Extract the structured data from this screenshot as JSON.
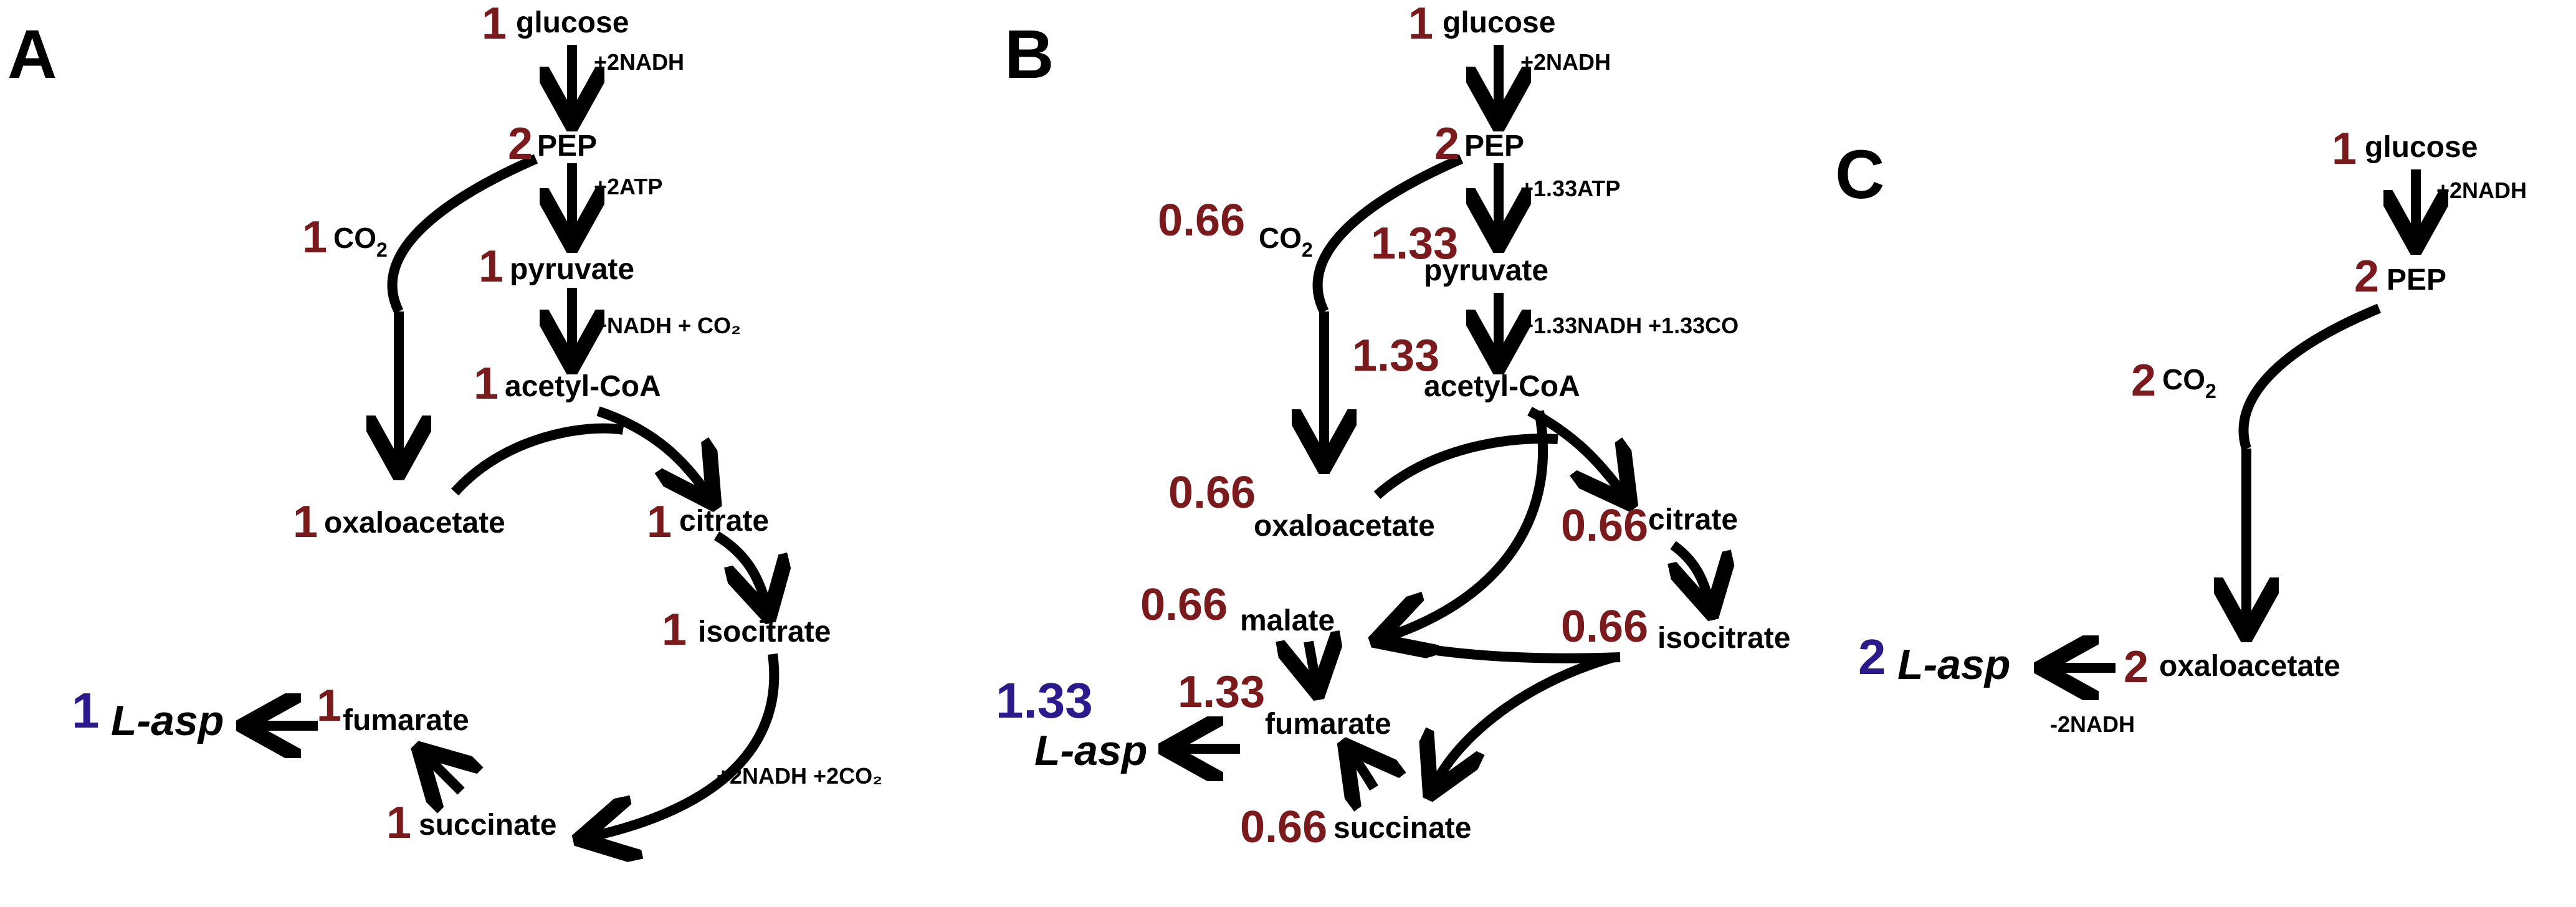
{
  "colors": {
    "coefficient": "#7a1a1c",
    "product": "#2a1a8c",
    "text": "#000000"
  },
  "panels": {
    "A": {
      "label": "A",
      "glucose": {
        "coef": "1",
        "name": "glucose"
      },
      "nadh1": "+2NADH",
      "pep": {
        "coef": "2",
        "name": "PEP"
      },
      "atp": "+2ATP",
      "co2": {
        "coef": "1",
        "name": "CO",
        "sub": "2"
      },
      "pyruvate": {
        "coef": "1",
        "name": "pyruvate"
      },
      "nadh_co2": "+NADH + CO₂",
      "acetyl": {
        "coef": "1",
        "name": "acetyl-CoA"
      },
      "oxaloacetate": {
        "coef": "1",
        "name": "oxaloacetate"
      },
      "citrate": {
        "coef": "1",
        "name": "citrate"
      },
      "isocitrate": {
        "coef": "1",
        "name": "isocitrate"
      },
      "nadh_2co2": "+2NADH +2CO₂",
      "fumarate": {
        "coef": "1",
        "name": "fumarate"
      },
      "succinate": {
        "coef": "1",
        "name": "succinate"
      },
      "lasp": {
        "coef": "1",
        "name": "L-asp"
      }
    },
    "B": {
      "label": "B",
      "glucose": {
        "coef": "1",
        "name": "glucose"
      },
      "nadh1": "+2NADH",
      "pep": {
        "coef": "2",
        "name": "PEP"
      },
      "atp": "+1.33ATP",
      "co2": {
        "coef": "0.66",
        "name": "CO",
        "sub": "2"
      },
      "pyruvate": {
        "coef": "1.33",
        "name": "pyruvate"
      },
      "nadh_co2": "+1.33NADH +1.33CO",
      "acetyl": {
        "coef": "1.33",
        "name": "acetyl-CoA"
      },
      "oxaloacetate": {
        "coef": "0.66",
        "name": "oxaloacetate"
      },
      "citrate": {
        "coef": "0.66",
        "name": "citrate"
      },
      "isocitrate": {
        "coef": "0.66",
        "name": "isocitrate"
      },
      "malate": {
        "coef": "0.66",
        "name": "malate"
      },
      "fumarate": {
        "coef": "1.33",
        "name": "fumarate"
      },
      "succinate": {
        "coef": "0.66",
        "name": "succinate"
      },
      "lasp": {
        "coef": "1.33",
        "name": "L-asp"
      }
    },
    "C": {
      "label": "C",
      "glucose": {
        "coef": "1",
        "name": "glucose"
      },
      "nadh1": "+2NADH",
      "pep": {
        "coef": "2",
        "name": "PEP"
      },
      "co2": {
        "coef": "2",
        "name": "CO",
        "sub": "2"
      },
      "oxaloacetate": {
        "coef": "2",
        "name": "oxaloacetate"
      },
      "nadh_minus": "-2NADH",
      "lasp": {
        "coef": "2",
        "name": "L-asp"
      }
    }
  }
}
